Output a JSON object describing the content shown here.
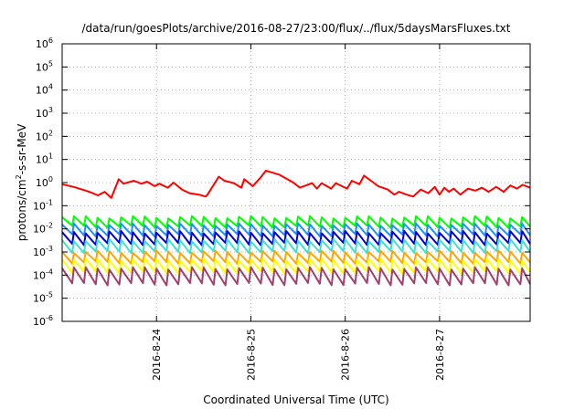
{
  "chart_data": {
    "type": "line",
    "title": "/data/run/goesPlots/archive/2016-08-27/23:00/flux/../flux/5daysMarsFluxes.txt",
    "xlabel": "Coordinated Universal Time (UTC)",
    "ylabel": {
      "base": "protons/cm",
      "sup": "2",
      "rest": "-s-sr-MeV"
    },
    "xscale": "linear",
    "yscale": "log",
    "xlim": [
      0,
      4.96
    ],
    "ylim_exp": [
      -6,
      6
    ],
    "x_unit": "days from 2016-08-23 00:00 UTC",
    "x_ticks": [
      {
        "pos": 1,
        "label": "2016-8-24"
      },
      {
        "pos": 2,
        "label": "2016-8-25"
      },
      {
        "pos": 3,
        "label": "2016-8-26"
      },
      {
        "pos": 4,
        "label": "2016-8-27"
      }
    ],
    "y_ticks": [
      {
        "exp": -6,
        "label": "10",
        "sup": "-6"
      },
      {
        "exp": -5,
        "label": "10",
        "sup": "-5"
      },
      {
        "exp": -4,
        "label": "10",
        "sup": "-4"
      },
      {
        "exp": -3,
        "label": "10",
        "sup": "-3"
      },
      {
        "exp": -2,
        "label": "10",
        "sup": "-2"
      },
      {
        "exp": -1,
        "label": "10",
        "sup": "-1"
      },
      {
        "exp": 0,
        "label": "10",
        "sup": "0"
      },
      {
        "exp": 1,
        "label": "10",
        "sup": "1"
      },
      {
        "exp": 2,
        "label": "10",
        "sup": "2"
      },
      {
        "exp": 3,
        "label": "10",
        "sup": "3"
      },
      {
        "exp": 4,
        "label": "10",
        "sup": "4"
      },
      {
        "exp": 5,
        "label": "10",
        "sup": "5"
      },
      {
        "exp": 6,
        "label": "10",
        "sup": "6"
      }
    ],
    "grid": true,
    "legend": "none",
    "series": [
      {
        "color": "#ff0000",
        "x": [
          0.0,
          0.12,
          0.25,
          0.3,
          0.38,
          0.45,
          0.52,
          0.6,
          0.65,
          0.76,
          0.84,
          0.9,
          0.98,
          1.03,
          1.12,
          1.18,
          1.27,
          1.35,
          1.45,
          1.52,
          1.54,
          1.66,
          1.72,
          1.82,
          1.9,
          1.93,
          2.02,
          2.1,
          2.16,
          2.3,
          2.45,
          2.52,
          2.65,
          2.7,
          2.75,
          2.85,
          2.9,
          3.02,
          3.07,
          3.15,
          3.2,
          3.3,
          3.35,
          3.45,
          3.52,
          3.57,
          3.65,
          3.72,
          3.8,
          3.88,
          3.95,
          4.0,
          4.05,
          4.1,
          4.15,
          4.22,
          4.3,
          4.38,
          4.45,
          4.52,
          4.6,
          4.68,
          4.75,
          4.82,
          4.88,
          4.96
        ],
        "y": [
          0.85,
          0.65,
          0.45,
          0.38,
          0.28,
          0.4,
          0.22,
          1.4,
          0.9,
          1.2,
          0.9,
          1.1,
          0.7,
          0.9,
          0.6,
          1.0,
          0.5,
          0.35,
          0.3,
          0.25,
          0.3,
          1.8,
          1.2,
          0.95,
          0.6,
          1.4,
          0.7,
          1.6,
          3.3,
          2.2,
          1.0,
          0.6,
          0.95,
          0.55,
          0.95,
          0.55,
          0.95,
          0.55,
          1.2,
          0.85,
          2.0,
          1.0,
          0.7,
          0.5,
          0.3,
          0.4,
          0.3,
          0.25,
          0.5,
          0.35,
          0.65,
          0.3,
          0.6,
          0.4,
          0.55,
          0.3,
          0.55,
          0.45,
          0.6,
          0.4,
          0.65,
          0.4,
          0.75,
          0.55,
          0.8,
          0.6
        ]
      },
      {
        "color": "#00ff00",
        "base": 0.02,
        "amp": 1.6
      },
      {
        "color": "#1e90ff",
        "base": 0.009,
        "amp": 1.7
      },
      {
        "color": "#0000cd",
        "base": 0.004,
        "amp": 1.8
      },
      {
        "color": "#40e0d0",
        "base": 0.0018,
        "amp": 1.8
      },
      {
        "color": "#ffa500",
        "base": 0.0006,
        "amp": 1.7
      },
      {
        "color": "#ffff00",
        "base": 0.00025,
        "amp": 1.9
      },
      {
        "color": "#a0406e",
        "base": 9e-05,
        "amp": 2.2
      }
    ],
    "sawtooth_period": 0.125
  }
}
